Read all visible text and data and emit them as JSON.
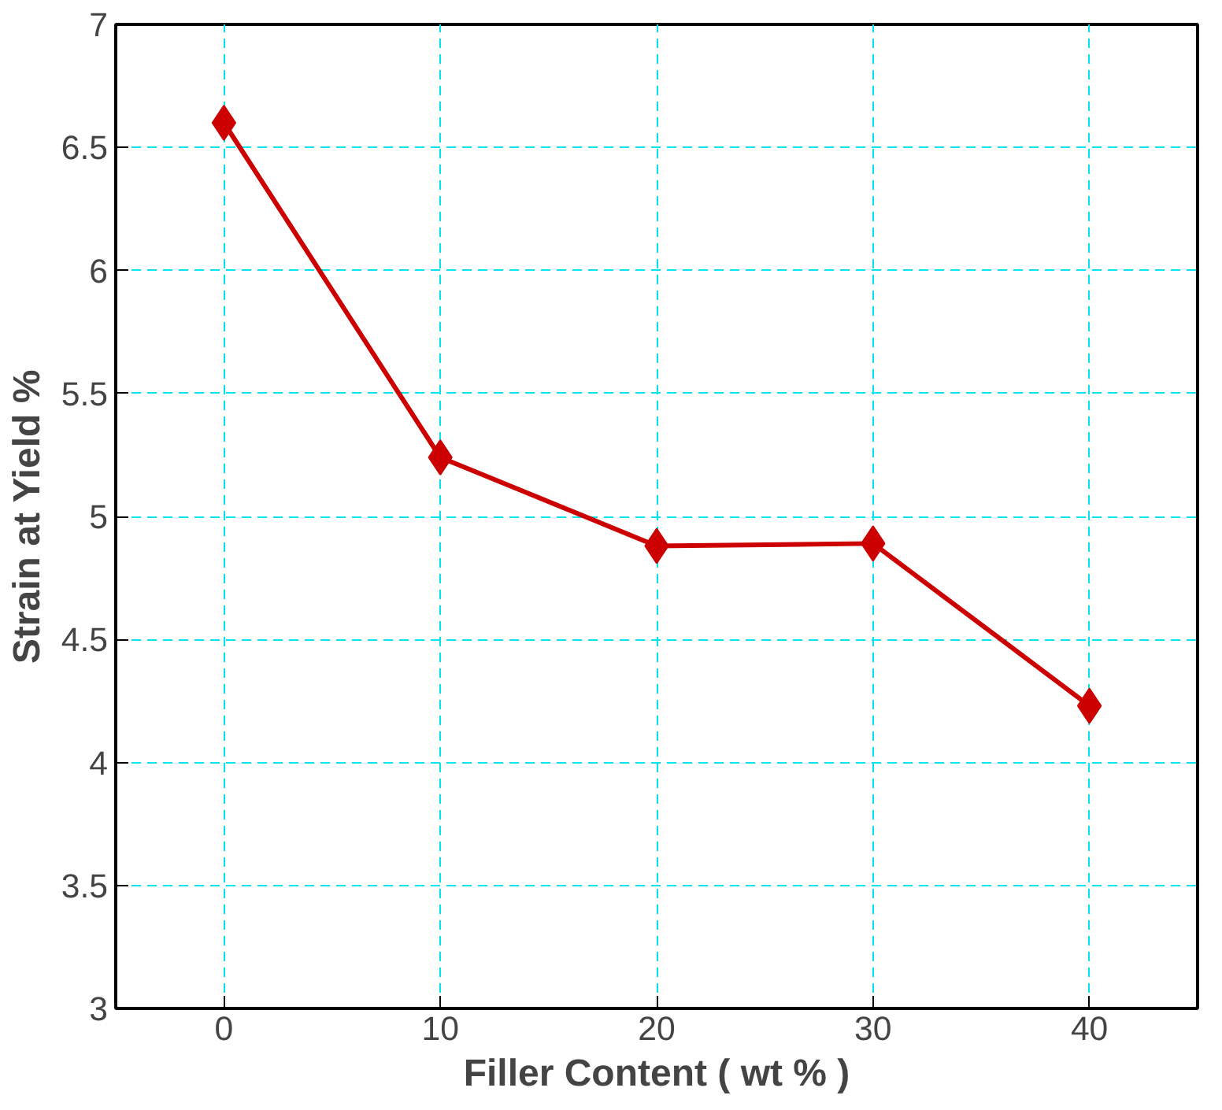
{
  "chart_data": {
    "type": "line",
    "xlabel": "Filler Content ( wt % )",
    "ylabel": "Strain at Yield %",
    "x": [
      0,
      10,
      20,
      30,
      40
    ],
    "series": [
      {
        "color": "#cc0000",
        "values": [
          6.6,
          5.24,
          4.88,
          4.89,
          4.23
        ]
      }
    ],
    "xlim": [
      -5,
      45
    ],
    "xticks": [
      0,
      10,
      20,
      30,
      40
    ],
    "ylim": [
      3,
      7
    ],
    "yticks": [
      3,
      3.5,
      4,
      4.5,
      5,
      5.5,
      6,
      6.5,
      7
    ],
    "grid": true,
    "marker": "diamond",
    "line_style": "solid"
  }
}
